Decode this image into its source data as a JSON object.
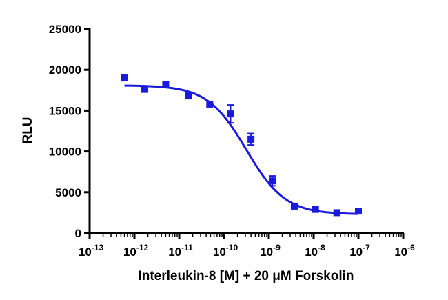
{
  "chart_data": {
    "type": "scatter",
    "xlabel": "Interleukin-8 [M] + 20 μM Forskolin",
    "ylabel": "RLU",
    "xscale": "log",
    "xlim": [
      1e-13,
      1e-06
    ],
    "ylim": [
      0,
      25000
    ],
    "x_ticks": [
      {
        "value": 1e-13,
        "base": "10",
        "exp": "-13"
      },
      {
        "value": 1e-12,
        "base": "10",
        "exp": "-12"
      },
      {
        "value": 1e-11,
        "base": "10",
        "exp": "-11"
      },
      {
        "value": 1e-10,
        "base": "10",
        "exp": "-10"
      },
      {
        "value": 1e-09,
        "base": "10",
        "exp": "-9"
      },
      {
        "value": 1e-08,
        "base": "10",
        "exp": "-8"
      },
      {
        "value": 1e-07,
        "base": "10",
        "exp": "-7"
      },
      {
        "value": 1e-06,
        "base": "10",
        "exp": "-6"
      }
    ],
    "y_ticks": [
      {
        "value": 0,
        "label": "0"
      },
      {
        "value": 5000,
        "label": "5000"
      },
      {
        "value": 10000,
        "label": "10000"
      },
      {
        "value": 15000,
        "label": "15000"
      },
      {
        "value": 20000,
        "label": "20000"
      },
      {
        "value": 25000,
        "label": "25000"
      }
    ],
    "color": "#1a1adc",
    "points": [
      {
        "x": 6e-13,
        "y": 19000,
        "err": 0
      },
      {
        "x": 1.7e-12,
        "y": 17600,
        "err": 0
      },
      {
        "x": 5e-12,
        "y": 18200,
        "err": 0
      },
      {
        "x": 1.6e-11,
        "y": 16800,
        "err": 0
      },
      {
        "x": 4.8e-11,
        "y": 15800,
        "err": 0
      },
      {
        "x": 1.4e-10,
        "y": 14600,
        "err": 1100
      },
      {
        "x": 4e-10,
        "y": 11500,
        "err": 700
      },
      {
        "x": 1.2e-09,
        "y": 6400,
        "err": 600
      },
      {
        "x": 3.7e-09,
        "y": 3300,
        "err": 0
      },
      {
        "x": 1.1e-08,
        "y": 2900,
        "err": 0
      },
      {
        "x": 3.3e-08,
        "y": 2500,
        "err": 0
      },
      {
        "x": 1e-07,
        "y": 2700,
        "err": 0
      }
    ],
    "fit": {
      "model": "four-parameter logistic",
      "top": 18100,
      "bottom": 2300,
      "logEC50": -9.5,
      "hill": -1.0
    },
    "grid": false,
    "legend": "none"
  }
}
